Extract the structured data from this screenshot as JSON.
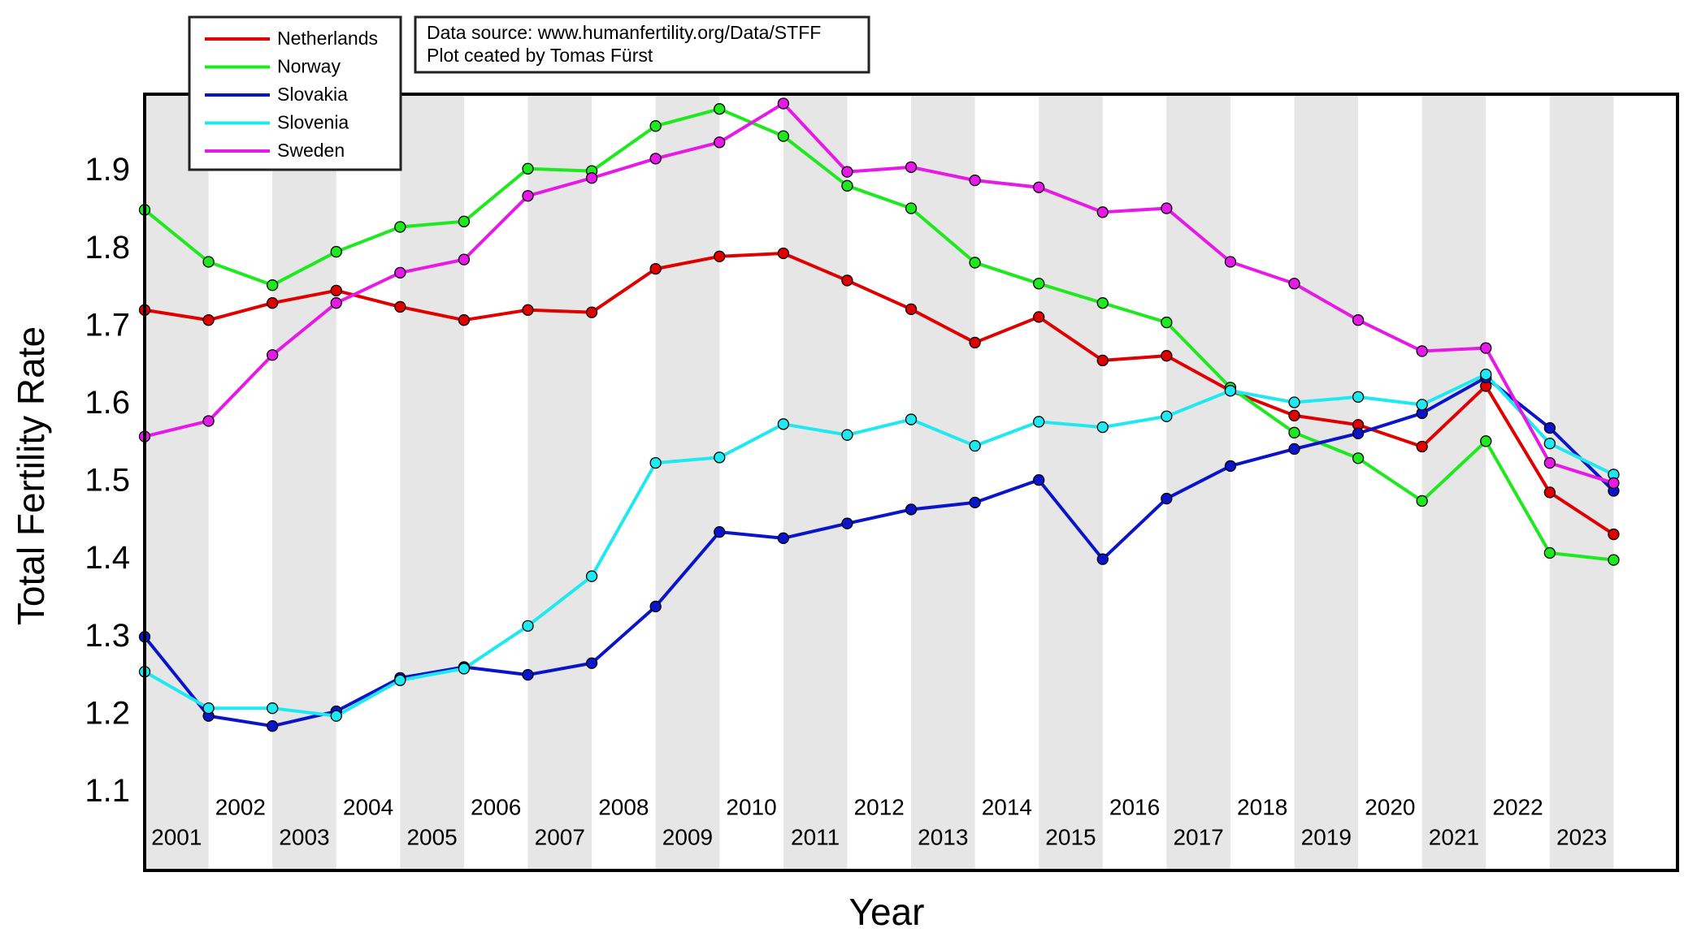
{
  "chart_data": {
    "type": "line",
    "x_label": "Year",
    "y_label": "Total Fertility Rate",
    "notes": [
      "Data source: www.humanfertility.org/Data/STFF",
      "Plot ceated by Tomas Fürst"
    ],
    "x": [
      2000,
      2001,
      2002,
      2003,
      2004,
      2005,
      2006,
      2007,
      2008,
      2009,
      2010,
      2011,
      2012,
      2013,
      2014,
      2015,
      2016,
      2017,
      2018,
      2019,
      2020,
      2021,
      2022,
      2023
    ],
    "xlim": [
      2000,
      2024
    ],
    "xticks": [
      2001,
      2002,
      2003,
      2004,
      2005,
      2006,
      2007,
      2008,
      2009,
      2010,
      2011,
      2012,
      2013,
      2014,
      2015,
      2016,
      2017,
      2018,
      2019,
      2020,
      2021,
      2022,
      2023
    ],
    "ylim": [
      1.0,
      2.0
    ],
    "yticks": [
      1.1,
      1.2,
      1.3,
      1.4,
      1.5,
      1.6,
      1.7,
      1.8,
      1.9
    ],
    "grid": false,
    "legend": "upper left",
    "band_color": "#e6e6e6",
    "series": [
      {
        "name": "Netherlands",
        "color": "#e00000",
        "values": [
          1.722,
          1.709,
          1.731,
          1.747,
          1.726,
          1.709,
          1.722,
          1.719,
          1.775,
          1.791,
          1.795,
          1.76,
          1.723,
          1.68,
          1.713,
          1.657,
          1.663,
          1.618,
          1.586,
          1.574,
          1.546,
          1.624,
          1.487,
          1.433
        ]
      },
      {
        "name": "Norway",
        "color": "#1ee81e",
        "values": [
          1.851,
          1.784,
          1.754,
          1.797,
          1.829,
          1.836,
          1.904,
          1.901,
          1.959,
          1.981,
          1.946,
          1.882,
          1.853,
          1.783,
          1.756,
          1.731,
          1.706,
          1.622,
          1.564,
          1.531,
          1.476,
          1.553,
          1.409,
          1.4
        ]
      },
      {
        "name": "Slovakia",
        "color": "#0a14c8",
        "values": [
          1.301,
          1.199,
          1.186,
          1.205,
          1.248,
          1.262,
          1.252,
          1.267,
          1.34,
          1.436,
          1.428,
          1.447,
          1.465,
          1.474,
          1.503,
          1.401,
          1.479,
          1.521,
          1.543,
          1.563,
          1.589,
          1.635,
          1.57,
          1.489
        ]
      },
      {
        "name": "Slovenia",
        "color": "#1ee8f0",
        "values": [
          1.256,
          1.209,
          1.209,
          1.199,
          1.245,
          1.26,
          1.315,
          1.379,
          1.525,
          1.532,
          1.575,
          1.561,
          1.581,
          1.547,
          1.578,
          1.571,
          1.585,
          1.618,
          1.603,
          1.61,
          1.6,
          1.639,
          1.55,
          1.51
        ]
      },
      {
        "name": "Sweden",
        "color": "#e619e6",
        "values": [
          1.559,
          1.579,
          1.664,
          1.731,
          1.77,
          1.787,
          1.869,
          1.892,
          1.917,
          1.938,
          1.988,
          1.9,
          1.906,
          1.889,
          1.88,
          1.848,
          1.853,
          1.784,
          1.756,
          1.709,
          1.669,
          1.673,
          1.525,
          1.499
        ]
      }
    ]
  }
}
